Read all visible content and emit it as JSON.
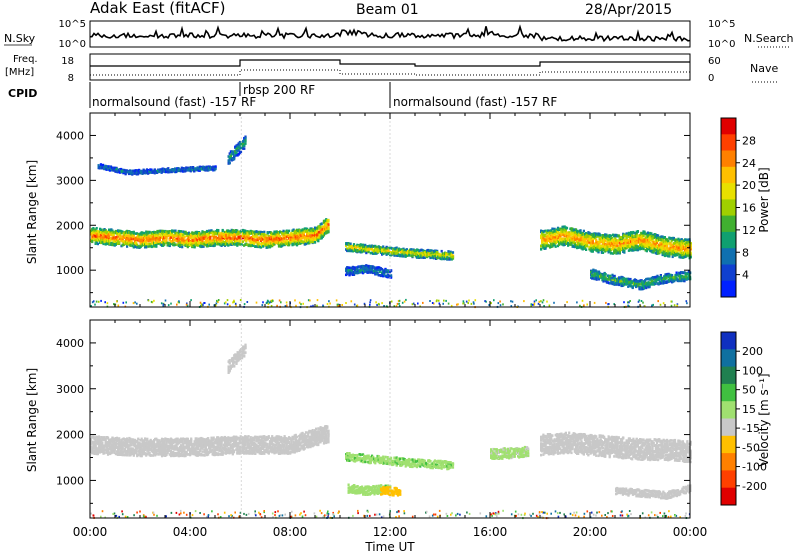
{
  "header": {
    "title": "Adak East (fitACF)",
    "beam": "Beam 01",
    "date": "28/Apr/2015"
  },
  "strip_nsky": {
    "left_label": "N.Sky",
    "right_label": "N.Search",
    "left_ticks": [
      "10^5",
      "10^0"
    ],
    "right_ticks": [
      "10^5",
      "10^0"
    ]
  },
  "strip_freq": {
    "left_label": "Freq.",
    "left_unit": "[MHz]",
    "right_label": "Nave",
    "left_ticks": [
      "18",
      "8"
    ],
    "right_ticks": [
      "60",
      "0"
    ]
  },
  "cpid": {
    "label": "CPID",
    "segments": [
      {
        "text": "normalsound (fast) -157 RF",
        "start": 0.0
      },
      {
        "text": "rbsp 200 RF",
        "start": 6.0
      },
      {
        "text": "normalsound (fast) -157 RF",
        "start": 12.0
      }
    ]
  },
  "colorbars": {
    "power": {
      "title": "Power [dB]",
      "ticks": [
        "28",
        "24",
        "20",
        "16",
        "12",
        "8",
        "4"
      ],
      "colors": [
        "#e00000",
        "#ff4000",
        "#ff8000",
        "#ffc000",
        "#e8e000",
        "#a0d000",
        "#40b030",
        "#10a070",
        "#1070b0",
        "#1040d0",
        "#0020ff"
      ]
    },
    "velocity": {
      "title": "Velocity [m s⁻¹]",
      "ticks": [
        "200",
        "100",
        "50",
        "15",
        "-15",
        "-50",
        "-100",
        "-200"
      ],
      "colors": [
        "#1030c0",
        "#1070a0",
        "#208050",
        "#40c040",
        "#a0e070",
        "#c8c8c8",
        "#ffc000",
        "#ff8000",
        "#ff4000",
        "#e00000"
      ]
    }
  },
  "x_axis": {
    "label": "Time UT",
    "ticks": [
      "00:00",
      "04:00",
      "08:00",
      "12:00",
      "16:00",
      "20:00",
      "00:00"
    ]
  },
  "y_axis_panels": {
    "label": "Slant Range [km]",
    "ticks": [
      "4000",
      "3000",
      "2000",
      "1000"
    ]
  },
  "chart_data": [
    {
      "type": "heatmap",
      "name": "power",
      "xlim": [
        0,
        24
      ],
      "ylim": [
        180,
        4500
      ],
      "yticks": [
        1000,
        2000,
        3000,
        4000
      ],
      "xticks": [
        0,
        4,
        8,
        12,
        16,
        20,
        24
      ],
      "zlim": [
        0,
        30
      ],
      "bands": [
        {
          "x": [
            0,
            1,
            2,
            3,
            4,
            5,
            6,
            7,
            8,
            9,
            9.5
          ],
          "y": [
            1800,
            1750,
            1700,
            1750,
            1700,
            1750,
            1750,
            1700,
            1750,
            1800,
            2050
          ],
          "width": 350,
          "value": 22
        },
        {
          "x": [
            5.5,
            6.2
          ],
          "y": [
            3500,
            3900
          ],
          "width": 250,
          "value": 8
        },
        {
          "x": [
            0.3,
            1.5,
            3.0,
            5.0
          ],
          "y": [
            3350,
            3200,
            3250,
            3300
          ],
          "width": 90,
          "value": 6
        },
        {
          "x": [
            10.2,
            11,
            12,
            13,
            14.5
          ],
          "y": [
            1550,
            1500,
            1450,
            1400,
            1350
          ],
          "width": 180,
          "value": 16
        },
        {
          "x": [
            10.2,
            11,
            12
          ],
          "y": [
            1000,
            1050,
            950
          ],
          "width": 180,
          "value": 6
        },
        {
          "x": [
            18,
            19,
            20,
            21,
            22,
            23,
            24
          ],
          "y": [
            1700,
            1800,
            1650,
            1600,
            1700,
            1550,
            1500
          ],
          "width": 420,
          "value": 20
        },
        {
          "x": [
            20,
            21,
            22,
            23,
            24
          ],
          "y": [
            950,
            800,
            700,
            850,
            900
          ],
          "width": 200,
          "value": 10
        }
      ]
    },
    {
      "type": "heatmap",
      "name": "velocity",
      "xlim": [
        0,
        24
      ],
      "ylim": [
        180,
        4500
      ],
      "yticks": [
        1000,
        2000,
        3000,
        4000
      ],
      "xticks": [
        0,
        4,
        8,
        12,
        16,
        20,
        24
      ],
      "zlim": [
        -200,
        200
      ],
      "bands": [
        {
          "x": [
            0,
            2,
            4,
            6,
            8,
            9.5
          ],
          "y": [
            1800,
            1750,
            1750,
            1800,
            1800,
            2050
          ],
          "width": 380,
          "value": 0
        },
        {
          "x": [
            5.5,
            6.2
          ],
          "y": [
            3500,
            3900
          ],
          "width": 250,
          "value": 0
        },
        {
          "x": [
            10.2,
            11,
            12,
            13,
            14.5
          ],
          "y": [
            1550,
            1500,
            1450,
            1400,
            1350
          ],
          "width": 170,
          "value": 35
        },
        {
          "x": [
            10.3,
            11,
            12
          ],
          "y": [
            850,
            800,
            850
          ],
          "width": 180,
          "value": 30
        },
        {
          "x": [
            11.6,
            12.4
          ],
          "y": [
            800,
            780
          ],
          "width": 170,
          "value": -60
        },
        {
          "x": [
            16,
            17.5
          ],
          "y": [
            1600,
            1650
          ],
          "width": 220,
          "value": 25
        },
        {
          "x": [
            18,
            19,
            20,
            21,
            22,
            23,
            24
          ],
          "y": [
            1800,
            1850,
            1800,
            1750,
            1700,
            1700,
            1650
          ],
          "width": 450,
          "value": 0
        },
        {
          "x": [
            21,
            22,
            23,
            24
          ],
          "y": [
            800,
            750,
            700,
            850
          ],
          "width": 150,
          "value": 0
        }
      ]
    }
  ]
}
